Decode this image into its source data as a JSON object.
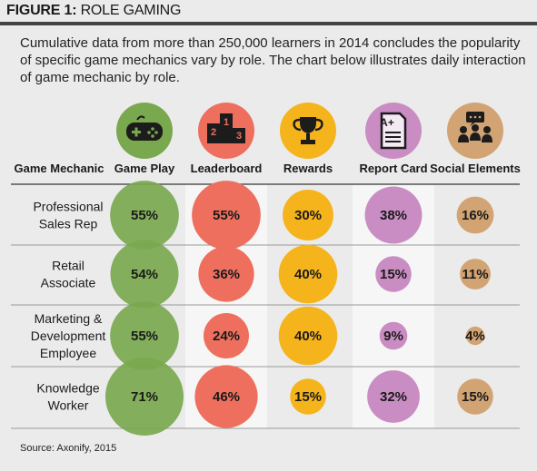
{
  "figure": {
    "label": "FIGURE 1:",
    "title": "ROLE GAMING",
    "intro": "Cumulative data from more than 250,000 learners in 2014 concludes the popularity of specific game mechanics vary by role. The chart below illustrates daily interaction of game mechanic by role.",
    "source": "Source: Axonify, 2015"
  },
  "chart_data": {
    "type": "bubble-table",
    "row_header": "Game Mechanic",
    "columns": [
      {
        "name": "Game Play",
        "color": "#7aa84e",
        "icon": "gamepad-icon"
      },
      {
        "name": "Leaderboard",
        "color": "#ee6f5e",
        "icon": "podium-icon"
      },
      {
        "name": "Rewards",
        "color": "#f5b41c",
        "icon": "trophy-icon"
      },
      {
        "name": "Report Card",
        "color": "#c98dc3",
        "icon": "report-card-icon"
      },
      {
        "name": "Social Elements",
        "color": "#d2a373",
        "icon": "social-group-icon"
      }
    ],
    "rows": [
      {
        "label_lines": [
          "Professional",
          "Sales Rep"
        ],
        "values": [
          55,
          55,
          30,
          38,
          16
        ]
      },
      {
        "label_lines": [
          "Retail",
          "Associate"
        ],
        "values": [
          54,
          36,
          40,
          15,
          11
        ]
      },
      {
        "label_lines": [
          "Marketing &",
          "Development",
          "Employee"
        ],
        "values": [
          55,
          24,
          40,
          9,
          4
        ]
      },
      {
        "label_lines": [
          "Knowledge",
          "Worker"
        ],
        "values": [
          71,
          46,
          15,
          32,
          15
        ]
      }
    ],
    "unit": "%"
  }
}
